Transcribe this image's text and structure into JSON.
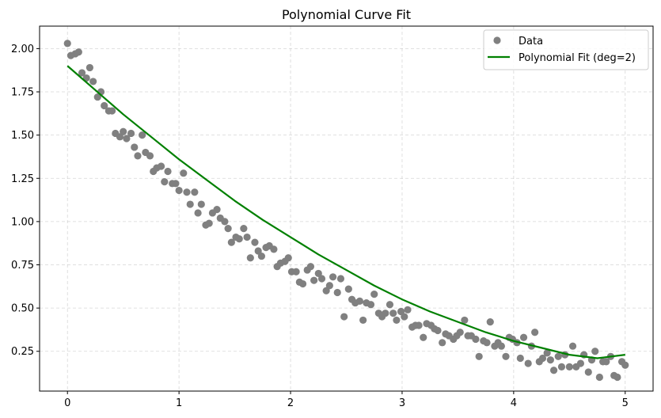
{
  "chart_data": {
    "type": "scatter",
    "title": "Polynomial Curve Fit",
    "xlabel": "",
    "ylabel": "",
    "xlim": [
      -0.25,
      5.25
    ],
    "ylim": [
      0.02,
      2.13
    ],
    "xticks": [
      0,
      1,
      2,
      3,
      4,
      5
    ],
    "xtick_labels": [
      "0",
      "1",
      "2",
      "3",
      "4",
      "5"
    ],
    "yticks": [
      0.25,
      0.5,
      0.75,
      1.0,
      1.25,
      1.5,
      1.75,
      2.0
    ],
    "ytick_labels": [
      "0.25",
      "0.50",
      "0.75",
      "1.00",
      "1.25",
      "1.50",
      "1.75",
      "2.00"
    ],
    "grid": true,
    "legend_position": "top-right",
    "colors": {
      "data": "#808080",
      "fit": "#008000"
    },
    "series": [
      {
        "name": "Data",
        "kind": "scatter",
        "x": [
          0.0,
          0.03,
          0.07,
          0.1,
          0.13,
          0.17,
          0.2,
          0.23,
          0.27,
          0.3,
          0.33,
          0.37,
          0.4,
          0.43,
          0.47,
          0.5,
          0.53,
          0.57,
          0.6,
          0.63,
          0.67,
          0.7,
          0.74,
          0.77,
          0.8,
          0.84,
          0.87,
          0.9,
          0.94,
          0.97,
          1.0,
          1.04,
          1.07,
          1.1,
          1.14,
          1.17,
          1.2,
          1.24,
          1.27,
          1.3,
          1.34,
          1.37,
          1.41,
          1.44,
          1.47,
          1.51,
          1.54,
          1.58,
          1.61,
          1.64,
          1.68,
          1.71,
          1.74,
          1.78,
          1.81,
          1.85,
          1.88,
          1.91,
          1.95,
          1.98,
          2.01,
          2.05,
          2.08,
          2.11,
          2.15,
          2.18,
          2.21,
          2.25,
          2.28,
          2.32,
          2.35,
          2.38,
          2.42,
          2.45,
          2.48,
          2.52,
          2.55,
          2.58,
          2.62,
          2.65,
          2.68,
          2.72,
          2.75,
          2.79,
          2.82,
          2.85,
          2.89,
          2.92,
          2.95,
          2.99,
          3.02,
          3.05,
          3.09,
          3.12,
          3.15,
          3.19,
          3.22,
          3.26,
          3.29,
          3.32,
          3.36,
          3.39,
          3.42,
          3.46,
          3.49,
          3.52,
          3.56,
          3.59,
          3.62,
          3.66,
          3.69,
          3.73,
          3.76,
          3.79,
          3.83,
          3.86,
          3.89,
          3.93,
          3.96,
          3.99,
          4.03,
          4.06,
          4.09,
          4.13,
          4.16,
          4.19,
          4.23,
          4.26,
          4.3,
          4.33,
          4.36,
          4.4,
          4.43,
          4.46,
          4.5,
          4.53,
          4.56,
          4.6,
          4.63,
          4.67,
          4.7,
          4.73,
          4.77,
          4.8,
          4.83,
          4.87,
          4.9,
          4.93,
          4.97,
          5.0
        ],
        "y": [
          2.03,
          1.96,
          1.97,
          1.98,
          1.86,
          1.83,
          1.89,
          1.81,
          1.72,
          1.75,
          1.67,
          1.64,
          1.64,
          1.51,
          1.49,
          1.52,
          1.48,
          1.51,
          1.43,
          1.38,
          1.5,
          1.4,
          1.38,
          1.29,
          1.31,
          1.32,
          1.23,
          1.29,
          1.22,
          1.22,
          1.18,
          1.28,
          1.17,
          1.1,
          1.17,
          1.05,
          1.1,
          0.98,
          0.99,
          1.05,
          1.07,
          1.02,
          1.0,
          0.96,
          0.88,
          0.91,
          0.9,
          0.96,
          0.91,
          0.79,
          0.88,
          0.83,
          0.8,
          0.85,
          0.86,
          0.84,
          0.74,
          0.76,
          0.77,
          0.79,
          0.71,
          0.71,
          0.65,
          0.64,
          0.72,
          0.74,
          0.66,
          0.7,
          0.67,
          0.6,
          0.63,
          0.68,
          0.59,
          0.67,
          0.45,
          0.61,
          0.55,
          0.53,
          0.54,
          0.43,
          0.53,
          0.52,
          0.58,
          0.47,
          0.45,
          0.47,
          0.52,
          0.47,
          0.43,
          0.48,
          0.45,
          0.49,
          0.39,
          0.4,
          0.4,
          0.33,
          0.41,
          0.4,
          0.38,
          0.37,
          0.3,
          0.35,
          0.34,
          0.32,
          0.34,
          0.36,
          0.43,
          0.34,
          0.34,
          0.32,
          0.22,
          0.31,
          0.3,
          0.42,
          0.28,
          0.3,
          0.28,
          0.22,
          0.33,
          0.32,
          0.3,
          0.21,
          0.33,
          0.18,
          0.28,
          0.36,
          0.19,
          0.21,
          0.24,
          0.2,
          0.14,
          0.22,
          0.16,
          0.23,
          0.16,
          0.28,
          0.16,
          0.18,
          0.23,
          0.13,
          0.2,
          0.25,
          0.1,
          0.19,
          0.19,
          0.22,
          0.11,
          0.1,
          0.19,
          0.17
        ]
      },
      {
        "name": "Polynomial Fit (deg=2)",
        "kind": "line",
        "x": [
          0.0,
          0.25,
          0.5,
          0.75,
          1.0,
          1.25,
          1.5,
          1.75,
          2.0,
          2.25,
          2.5,
          2.75,
          3.0,
          3.25,
          3.5,
          3.75,
          4.0,
          4.25,
          4.5,
          4.75,
          5.0
        ],
        "y": [
          1.9,
          1.76,
          1.62,
          1.49,
          1.36,
          1.24,
          1.12,
          1.01,
          0.91,
          0.81,
          0.72,
          0.63,
          0.55,
          0.48,
          0.42,
          0.36,
          0.31,
          0.27,
          0.23,
          0.21,
          0.23
        ]
      }
    ]
  }
}
